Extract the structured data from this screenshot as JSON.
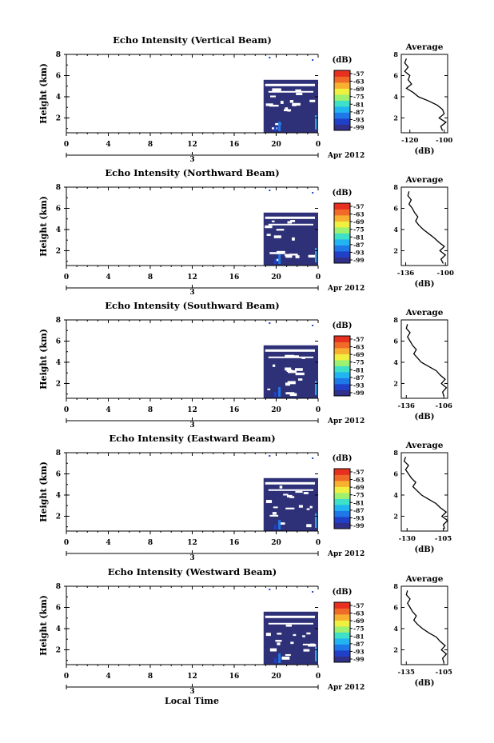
{
  "figure": {
    "bottom_xlabel": "Local Time",
    "date_label": "Apr 2012",
    "day_label": "3",
    "colorbar_unit": "(dB)",
    "colorbar_ticks": [
      "-57",
      "-63",
      "-69",
      "-75",
      "-81",
      "-87",
      "-93",
      "-99"
    ],
    "colormap": [
      "#30308a",
      "#2040c8",
      "#1e78e8",
      "#22b4f0",
      "#3ee0c8",
      "#9ef070",
      "#f0f040",
      "#f8b030",
      "#f06a28",
      "#e83020"
    ],
    "background_color": "#2e3078",
    "profile_title": "Average",
    "profile_xlabel": "(dB)"
  },
  "chart_data": [
    {
      "type": "heatmap",
      "title": "Echo Intensity (Vertical Beam)",
      "ylabel": "Height (km)",
      "x_ticks": [
        "0",
        "4",
        "8",
        "12",
        "16",
        "20",
        "0"
      ],
      "y_ticks": [
        "2",
        "4",
        "6",
        "8"
      ],
      "xlim": [
        0,
        24
      ],
      "ylim": [
        0.6,
        8.0
      ],
      "data_time_range": [
        18.8,
        24.0
      ],
      "data_height_range": [
        0.6,
        5.6
      ],
      "profile": {
        "title": "Average",
        "x_ticks": [
          "-120",
          "-100"
        ],
        "xlim": [
          -125,
          -98
        ],
        "height": [
          0.8,
          1.2,
          1.6,
          2.0,
          2.4,
          2.8,
          3.2,
          3.6,
          4.0,
          4.4,
          4.8,
          5.2,
          5.6,
          6.0,
          6.4,
          6.8,
          7.2,
          7.6
        ],
        "value": [
          -101,
          -102,
          -99,
          -103,
          -100,
          -101,
          -104,
          -109,
          -115,
          -118,
          -122,
          -119,
          -121,
          -120,
          -123,
          -121,
          -123,
          -122
        ]
      }
    },
    {
      "type": "heatmap",
      "title": "Echo Intensity (Northward Beam)",
      "ylabel": "Height (km)",
      "x_ticks": [
        "0",
        "4",
        "8",
        "12",
        "16",
        "20",
        "0"
      ],
      "y_ticks": [
        "2",
        "4",
        "6",
        "8"
      ],
      "xlim": [
        0,
        24
      ],
      "ylim": [
        0.6,
        8.0
      ],
      "data_time_range": [
        18.8,
        24.0
      ],
      "data_height_range": [
        0.6,
        5.6
      ],
      "profile": {
        "title": "Average",
        "x_ticks": [
          "-136",
          "-100"
        ],
        "xlim": [
          -140,
          -98
        ],
        "height": [
          0.8,
          1.2,
          1.6,
          2.0,
          2.4,
          2.8,
          3.2,
          3.6,
          4.0,
          4.4,
          4.8,
          5.2,
          5.6,
          6.0,
          6.4,
          6.8,
          7.2,
          7.6
        ],
        "value": [
          -102,
          -104,
          -100,
          -105,
          -101,
          -106,
          -110,
          -115,
          -120,
          -124,
          -127,
          -125,
          -128,
          -130,
          -133,
          -131,
          -134,
          -133
        ]
      }
    },
    {
      "type": "heatmap",
      "title": "Echo Intensity (Southward Beam)",
      "ylabel": "Height (km)",
      "x_ticks": [
        "0",
        "4",
        "8",
        "12",
        "16",
        "20",
        "0"
      ],
      "y_ticks": [
        "2",
        "4",
        "6",
        "8"
      ],
      "xlim": [
        0,
        24
      ],
      "ylim": [
        0.6,
        8.0
      ],
      "data_time_range": [
        18.8,
        24.0
      ],
      "data_height_range": [
        0.6,
        5.6
      ],
      "profile": {
        "title": "Average",
        "x_ticks": [
          "-136",
          "-106"
        ],
        "xlim": [
          -140,
          -103
        ],
        "height": [
          0.8,
          1.2,
          1.6,
          2.0,
          2.4,
          2.8,
          3.2,
          3.6,
          4.0,
          4.4,
          4.8,
          5.2,
          5.6,
          6.0,
          6.4,
          6.8,
          7.2,
          7.6
        ],
        "value": [
          -106,
          -107,
          -104,
          -108,
          -105,
          -109,
          -112,
          -118,
          -124,
          -127,
          -130,
          -128,
          -131,
          -133,
          -135,
          -133,
          -136,
          -135
        ]
      }
    },
    {
      "type": "heatmap",
      "title": "Echo Intensity (Eastward Beam)",
      "ylabel": "Height (km)",
      "x_ticks": [
        "0",
        "4",
        "8",
        "12",
        "16",
        "20",
        "0"
      ],
      "y_ticks": [
        "2",
        "4",
        "6",
        "8"
      ],
      "xlim": [
        0,
        24
      ],
      "ylim": [
        0.6,
        8.0
      ],
      "data_time_range": [
        18.8,
        24.0
      ],
      "data_height_range": [
        0.6,
        5.6
      ],
      "profile": {
        "title": "Average",
        "x_ticks": [
          "-130",
          "-105"
        ],
        "xlim": [
          -134,
          -102
        ],
        "height": [
          0.8,
          1.2,
          1.6,
          2.0,
          2.4,
          2.8,
          3.2,
          3.6,
          4.0,
          4.4,
          4.8,
          5.2,
          5.6,
          6.0,
          6.4,
          6.8,
          7.2,
          7.6
        ],
        "value": [
          -104,
          -105,
          -102,
          -106,
          -103,
          -107,
          -110,
          -115,
          -120,
          -123,
          -126,
          -124,
          -127,
          -129,
          -131,
          -129,
          -132,
          -131
        ]
      }
    },
    {
      "type": "heatmap",
      "title": "Echo Intensity (Westward Beam)",
      "ylabel": "Height (km)",
      "x_ticks": [
        "0",
        "4",
        "8",
        "12",
        "16",
        "20",
        "0"
      ],
      "y_ticks": [
        "2",
        "4",
        "6",
        "8"
      ],
      "xlim": [
        0,
        24
      ],
      "ylim": [
        0.6,
        8.0
      ],
      "data_time_range": [
        18.8,
        24.0
      ],
      "data_height_range": [
        0.6,
        5.6
      ],
      "profile": {
        "title": "Average",
        "x_ticks": [
          "-135",
          "-105"
        ],
        "xlim": [
          -139,
          -102
        ],
        "height": [
          0.8,
          1.2,
          1.6,
          2.0,
          2.4,
          2.8,
          3.2,
          3.6,
          4.0,
          4.4,
          4.8,
          5.2,
          5.6,
          6.0,
          6.4,
          6.8,
          7.2,
          7.6
        ],
        "value": [
          -105,
          -106,
          -103,
          -107,
          -104,
          -108,
          -111,
          -117,
          -122,
          -126,
          -129,
          -127,
          -130,
          -132,
          -134,
          -132,
          -135,
          -134
        ]
      }
    }
  ]
}
